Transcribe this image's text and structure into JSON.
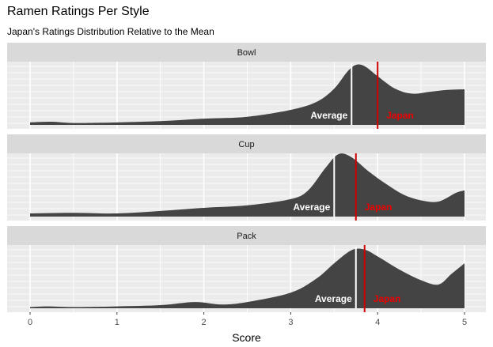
{
  "chart_data": {
    "type": "area",
    "title": "Ramen Ratings Per Style",
    "subtitle": "Japan's Ratings Distribution Relative to the Mean",
    "xlabel": "Score",
    "ylabel": "",
    "xlim": [
      0,
      5
    ],
    "x_ticks": [
      "0",
      "1",
      "2",
      "3",
      "4",
      "5"
    ],
    "grid": true,
    "facets": [
      {
        "name": "Bowl",
        "density": [
          [
            0,
            0.04
          ],
          [
            0.25,
            0.05
          ],
          [
            0.5,
            0.03
          ],
          [
            1,
            0.04
          ],
          [
            1.5,
            0.06
          ],
          [
            2,
            0.1
          ],
          [
            2.5,
            0.13
          ],
          [
            3,
            0.24
          ],
          [
            3.3,
            0.37
          ],
          [
            3.5,
            0.58
          ],
          [
            3.65,
            0.85
          ],
          [
            3.75,
            0.96
          ],
          [
            3.85,
            0.94
          ],
          [
            4,
            0.78
          ],
          [
            4.2,
            0.58
          ],
          [
            4.4,
            0.5
          ],
          [
            4.6,
            0.53
          ],
          [
            4.8,
            0.56
          ],
          [
            5,
            0.57
          ]
        ],
        "mean": 3.7,
        "japan": 4.0,
        "mean_label": "Average",
        "japan_label": "Japan"
      },
      {
        "name": "Cup",
        "density": [
          [
            0,
            0.05
          ],
          [
            0.5,
            0.06
          ],
          [
            1,
            0.05
          ],
          [
            1.5,
            0.09
          ],
          [
            2,
            0.14
          ],
          [
            2.5,
            0.18
          ],
          [
            3,
            0.28
          ],
          [
            3.2,
            0.42
          ],
          [
            3.4,
            0.78
          ],
          [
            3.55,
            1.0
          ],
          [
            3.7,
            0.95
          ],
          [
            3.9,
            0.72
          ],
          [
            4.1,
            0.52
          ],
          [
            4.3,
            0.35
          ],
          [
            4.5,
            0.26
          ],
          [
            4.7,
            0.24
          ],
          [
            4.9,
            0.38
          ],
          [
            5,
            0.42
          ]
        ],
        "mean": 3.5,
        "japan": 3.75,
        "mean_label": "Average",
        "japan_label": "Japan"
      },
      {
        "name": "Pack",
        "density": [
          [
            0,
            0.02
          ],
          [
            0.2,
            0.03
          ],
          [
            0.5,
            0.02
          ],
          [
            1,
            0.03
          ],
          [
            1.5,
            0.05
          ],
          [
            1.9,
            0.1
          ],
          [
            2.2,
            0.06
          ],
          [
            2.5,
            0.1
          ],
          [
            3,
            0.25
          ],
          [
            3.3,
            0.48
          ],
          [
            3.5,
            0.72
          ],
          [
            3.7,
            0.93
          ],
          [
            3.85,
            0.94
          ],
          [
            4,
            0.83
          ],
          [
            4.25,
            0.62
          ],
          [
            4.5,
            0.45
          ],
          [
            4.7,
            0.38
          ],
          [
            4.85,
            0.55
          ],
          [
            5,
            0.72
          ]
        ],
        "mean": 3.75,
        "japan": 3.85,
        "mean_label": "Average",
        "japan_label": "Japan"
      }
    ],
    "colors": {
      "fill": "#444444",
      "strip": "#d9d9d9",
      "panel": "#ebebeb",
      "grid": "#ffffff",
      "mean_line": "#ffffff",
      "japan_line": "#d00000",
      "japan_text": "#ee0000"
    }
  }
}
